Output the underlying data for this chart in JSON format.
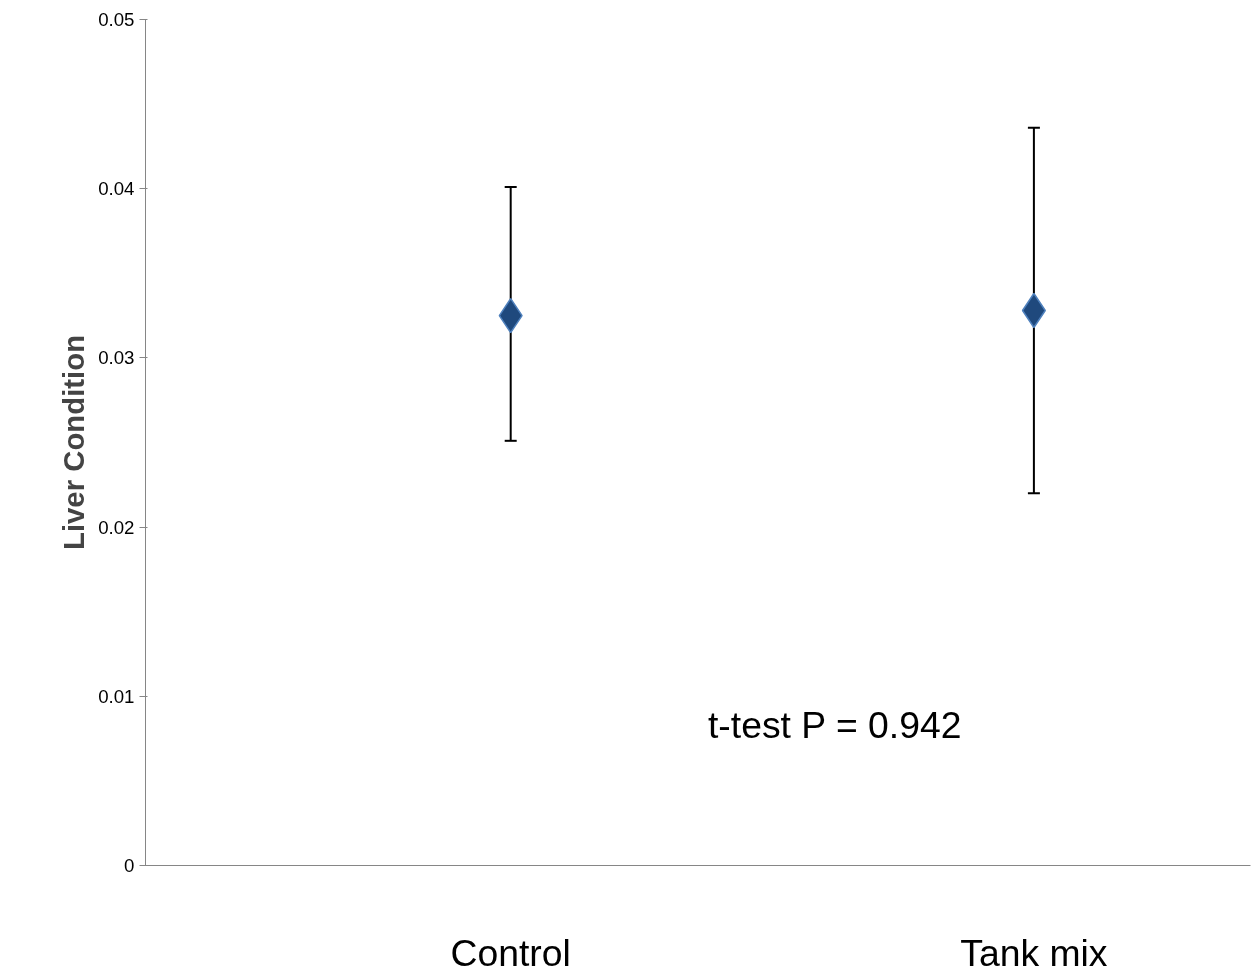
{
  "chart_data": {
    "type": "scatter",
    "ylabel": "Liver Condition",
    "categories": [
      "Control",
      "Tank mix"
    ],
    "series": [
      {
        "color": "#1f497d",
        "values": [
          0.0325,
          0.0328
        ],
        "errors": [
          [
            0.0251,
            0.0401
          ],
          [
            0.022,
            0.0436
          ]
        ]
      }
    ],
    "ylim": [
      0,
      0.05
    ],
    "yticks": [
      0,
      0.01,
      0.02,
      0.03,
      0.04,
      0.05
    ],
    "marker": "diamond",
    "annotations": [
      {
        "text": "t-test P = 0.942"
      }
    ]
  }
}
